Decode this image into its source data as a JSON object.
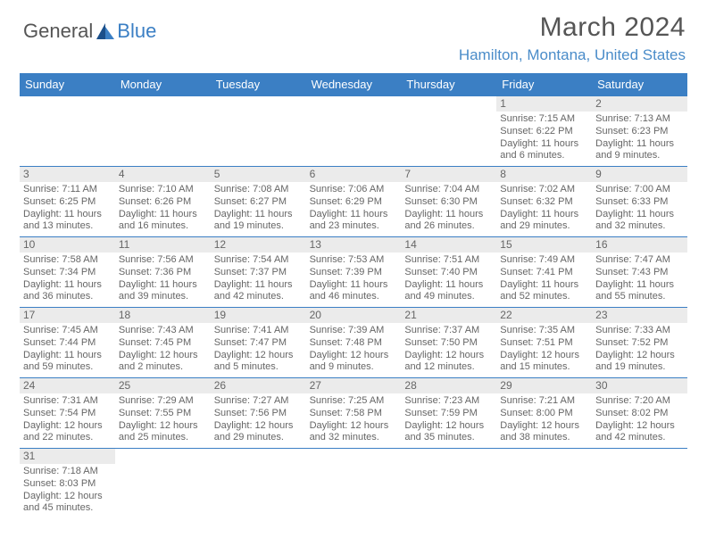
{
  "logo": {
    "text1": "General",
    "text2": "Blue"
  },
  "title": "March 2024",
  "location": "Hamilton, Montana, United States",
  "colors": {
    "accent": "#3b7fc4",
    "header_text": "#ffffff",
    "body_text": "#666666",
    "daynum_bg": "#ebebeb"
  },
  "day_headers": [
    "Sunday",
    "Monday",
    "Tuesday",
    "Wednesday",
    "Thursday",
    "Friday",
    "Saturday"
  ],
  "weeks": [
    [
      null,
      null,
      null,
      null,
      null,
      {
        "n": "1",
        "sunrise": "Sunrise: 7:15 AM",
        "sunset": "Sunset: 6:22 PM",
        "d1": "Daylight: 11 hours",
        "d2": "and 6 minutes."
      },
      {
        "n": "2",
        "sunrise": "Sunrise: 7:13 AM",
        "sunset": "Sunset: 6:23 PM",
        "d1": "Daylight: 11 hours",
        "d2": "and 9 minutes."
      }
    ],
    [
      {
        "n": "3",
        "sunrise": "Sunrise: 7:11 AM",
        "sunset": "Sunset: 6:25 PM",
        "d1": "Daylight: 11 hours",
        "d2": "and 13 minutes."
      },
      {
        "n": "4",
        "sunrise": "Sunrise: 7:10 AM",
        "sunset": "Sunset: 6:26 PM",
        "d1": "Daylight: 11 hours",
        "d2": "and 16 minutes."
      },
      {
        "n": "5",
        "sunrise": "Sunrise: 7:08 AM",
        "sunset": "Sunset: 6:27 PM",
        "d1": "Daylight: 11 hours",
        "d2": "and 19 minutes."
      },
      {
        "n": "6",
        "sunrise": "Sunrise: 7:06 AM",
        "sunset": "Sunset: 6:29 PM",
        "d1": "Daylight: 11 hours",
        "d2": "and 23 minutes."
      },
      {
        "n": "7",
        "sunrise": "Sunrise: 7:04 AM",
        "sunset": "Sunset: 6:30 PM",
        "d1": "Daylight: 11 hours",
        "d2": "and 26 minutes."
      },
      {
        "n": "8",
        "sunrise": "Sunrise: 7:02 AM",
        "sunset": "Sunset: 6:32 PM",
        "d1": "Daylight: 11 hours",
        "d2": "and 29 minutes."
      },
      {
        "n": "9",
        "sunrise": "Sunrise: 7:00 AM",
        "sunset": "Sunset: 6:33 PM",
        "d1": "Daylight: 11 hours",
        "d2": "and 32 minutes."
      }
    ],
    [
      {
        "n": "10",
        "sunrise": "Sunrise: 7:58 AM",
        "sunset": "Sunset: 7:34 PM",
        "d1": "Daylight: 11 hours",
        "d2": "and 36 minutes."
      },
      {
        "n": "11",
        "sunrise": "Sunrise: 7:56 AM",
        "sunset": "Sunset: 7:36 PM",
        "d1": "Daylight: 11 hours",
        "d2": "and 39 minutes."
      },
      {
        "n": "12",
        "sunrise": "Sunrise: 7:54 AM",
        "sunset": "Sunset: 7:37 PM",
        "d1": "Daylight: 11 hours",
        "d2": "and 42 minutes."
      },
      {
        "n": "13",
        "sunrise": "Sunrise: 7:53 AM",
        "sunset": "Sunset: 7:39 PM",
        "d1": "Daylight: 11 hours",
        "d2": "and 46 minutes."
      },
      {
        "n": "14",
        "sunrise": "Sunrise: 7:51 AM",
        "sunset": "Sunset: 7:40 PM",
        "d1": "Daylight: 11 hours",
        "d2": "and 49 minutes."
      },
      {
        "n": "15",
        "sunrise": "Sunrise: 7:49 AM",
        "sunset": "Sunset: 7:41 PM",
        "d1": "Daylight: 11 hours",
        "d2": "and 52 minutes."
      },
      {
        "n": "16",
        "sunrise": "Sunrise: 7:47 AM",
        "sunset": "Sunset: 7:43 PM",
        "d1": "Daylight: 11 hours",
        "d2": "and 55 minutes."
      }
    ],
    [
      {
        "n": "17",
        "sunrise": "Sunrise: 7:45 AM",
        "sunset": "Sunset: 7:44 PM",
        "d1": "Daylight: 11 hours",
        "d2": "and 59 minutes."
      },
      {
        "n": "18",
        "sunrise": "Sunrise: 7:43 AM",
        "sunset": "Sunset: 7:45 PM",
        "d1": "Daylight: 12 hours",
        "d2": "and 2 minutes."
      },
      {
        "n": "19",
        "sunrise": "Sunrise: 7:41 AM",
        "sunset": "Sunset: 7:47 PM",
        "d1": "Daylight: 12 hours",
        "d2": "and 5 minutes."
      },
      {
        "n": "20",
        "sunrise": "Sunrise: 7:39 AM",
        "sunset": "Sunset: 7:48 PM",
        "d1": "Daylight: 12 hours",
        "d2": "and 9 minutes."
      },
      {
        "n": "21",
        "sunrise": "Sunrise: 7:37 AM",
        "sunset": "Sunset: 7:50 PM",
        "d1": "Daylight: 12 hours",
        "d2": "and 12 minutes."
      },
      {
        "n": "22",
        "sunrise": "Sunrise: 7:35 AM",
        "sunset": "Sunset: 7:51 PM",
        "d1": "Daylight: 12 hours",
        "d2": "and 15 minutes."
      },
      {
        "n": "23",
        "sunrise": "Sunrise: 7:33 AM",
        "sunset": "Sunset: 7:52 PM",
        "d1": "Daylight: 12 hours",
        "d2": "and 19 minutes."
      }
    ],
    [
      {
        "n": "24",
        "sunrise": "Sunrise: 7:31 AM",
        "sunset": "Sunset: 7:54 PM",
        "d1": "Daylight: 12 hours",
        "d2": "and 22 minutes."
      },
      {
        "n": "25",
        "sunrise": "Sunrise: 7:29 AM",
        "sunset": "Sunset: 7:55 PM",
        "d1": "Daylight: 12 hours",
        "d2": "and 25 minutes."
      },
      {
        "n": "26",
        "sunrise": "Sunrise: 7:27 AM",
        "sunset": "Sunset: 7:56 PM",
        "d1": "Daylight: 12 hours",
        "d2": "and 29 minutes."
      },
      {
        "n": "27",
        "sunrise": "Sunrise: 7:25 AM",
        "sunset": "Sunset: 7:58 PM",
        "d1": "Daylight: 12 hours",
        "d2": "and 32 minutes."
      },
      {
        "n": "28",
        "sunrise": "Sunrise: 7:23 AM",
        "sunset": "Sunset: 7:59 PM",
        "d1": "Daylight: 12 hours",
        "d2": "and 35 minutes."
      },
      {
        "n": "29",
        "sunrise": "Sunrise: 7:21 AM",
        "sunset": "Sunset: 8:00 PM",
        "d1": "Daylight: 12 hours",
        "d2": "and 38 minutes."
      },
      {
        "n": "30",
        "sunrise": "Sunrise: 7:20 AM",
        "sunset": "Sunset: 8:02 PM",
        "d1": "Daylight: 12 hours",
        "d2": "and 42 minutes."
      }
    ],
    [
      {
        "n": "31",
        "sunrise": "Sunrise: 7:18 AM",
        "sunset": "Sunset: 8:03 PM",
        "d1": "Daylight: 12 hours",
        "d2": "and 45 minutes."
      },
      null,
      null,
      null,
      null,
      null,
      null
    ]
  ]
}
